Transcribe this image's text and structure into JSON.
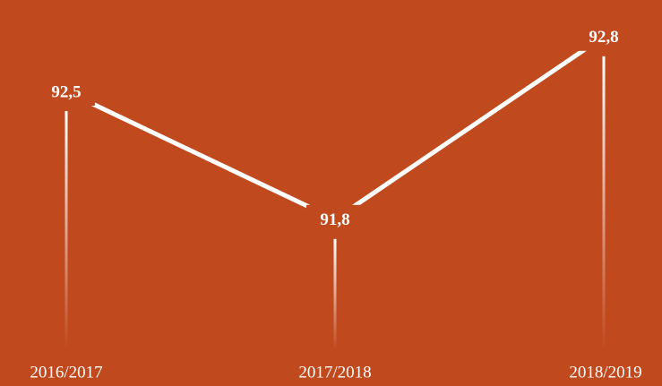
{
  "chart_data": {
    "type": "line",
    "categories": [
      "2016/2017",
      "2017/2018",
      "2018/2019"
    ],
    "values": [
      92.5,
      91.8,
      92.8
    ],
    "value_labels": [
      "92,5",
      "91,8",
      "92,8"
    ],
    "color": "#ffffff",
    "ylim": [
      91,
      93
    ]
  }
}
